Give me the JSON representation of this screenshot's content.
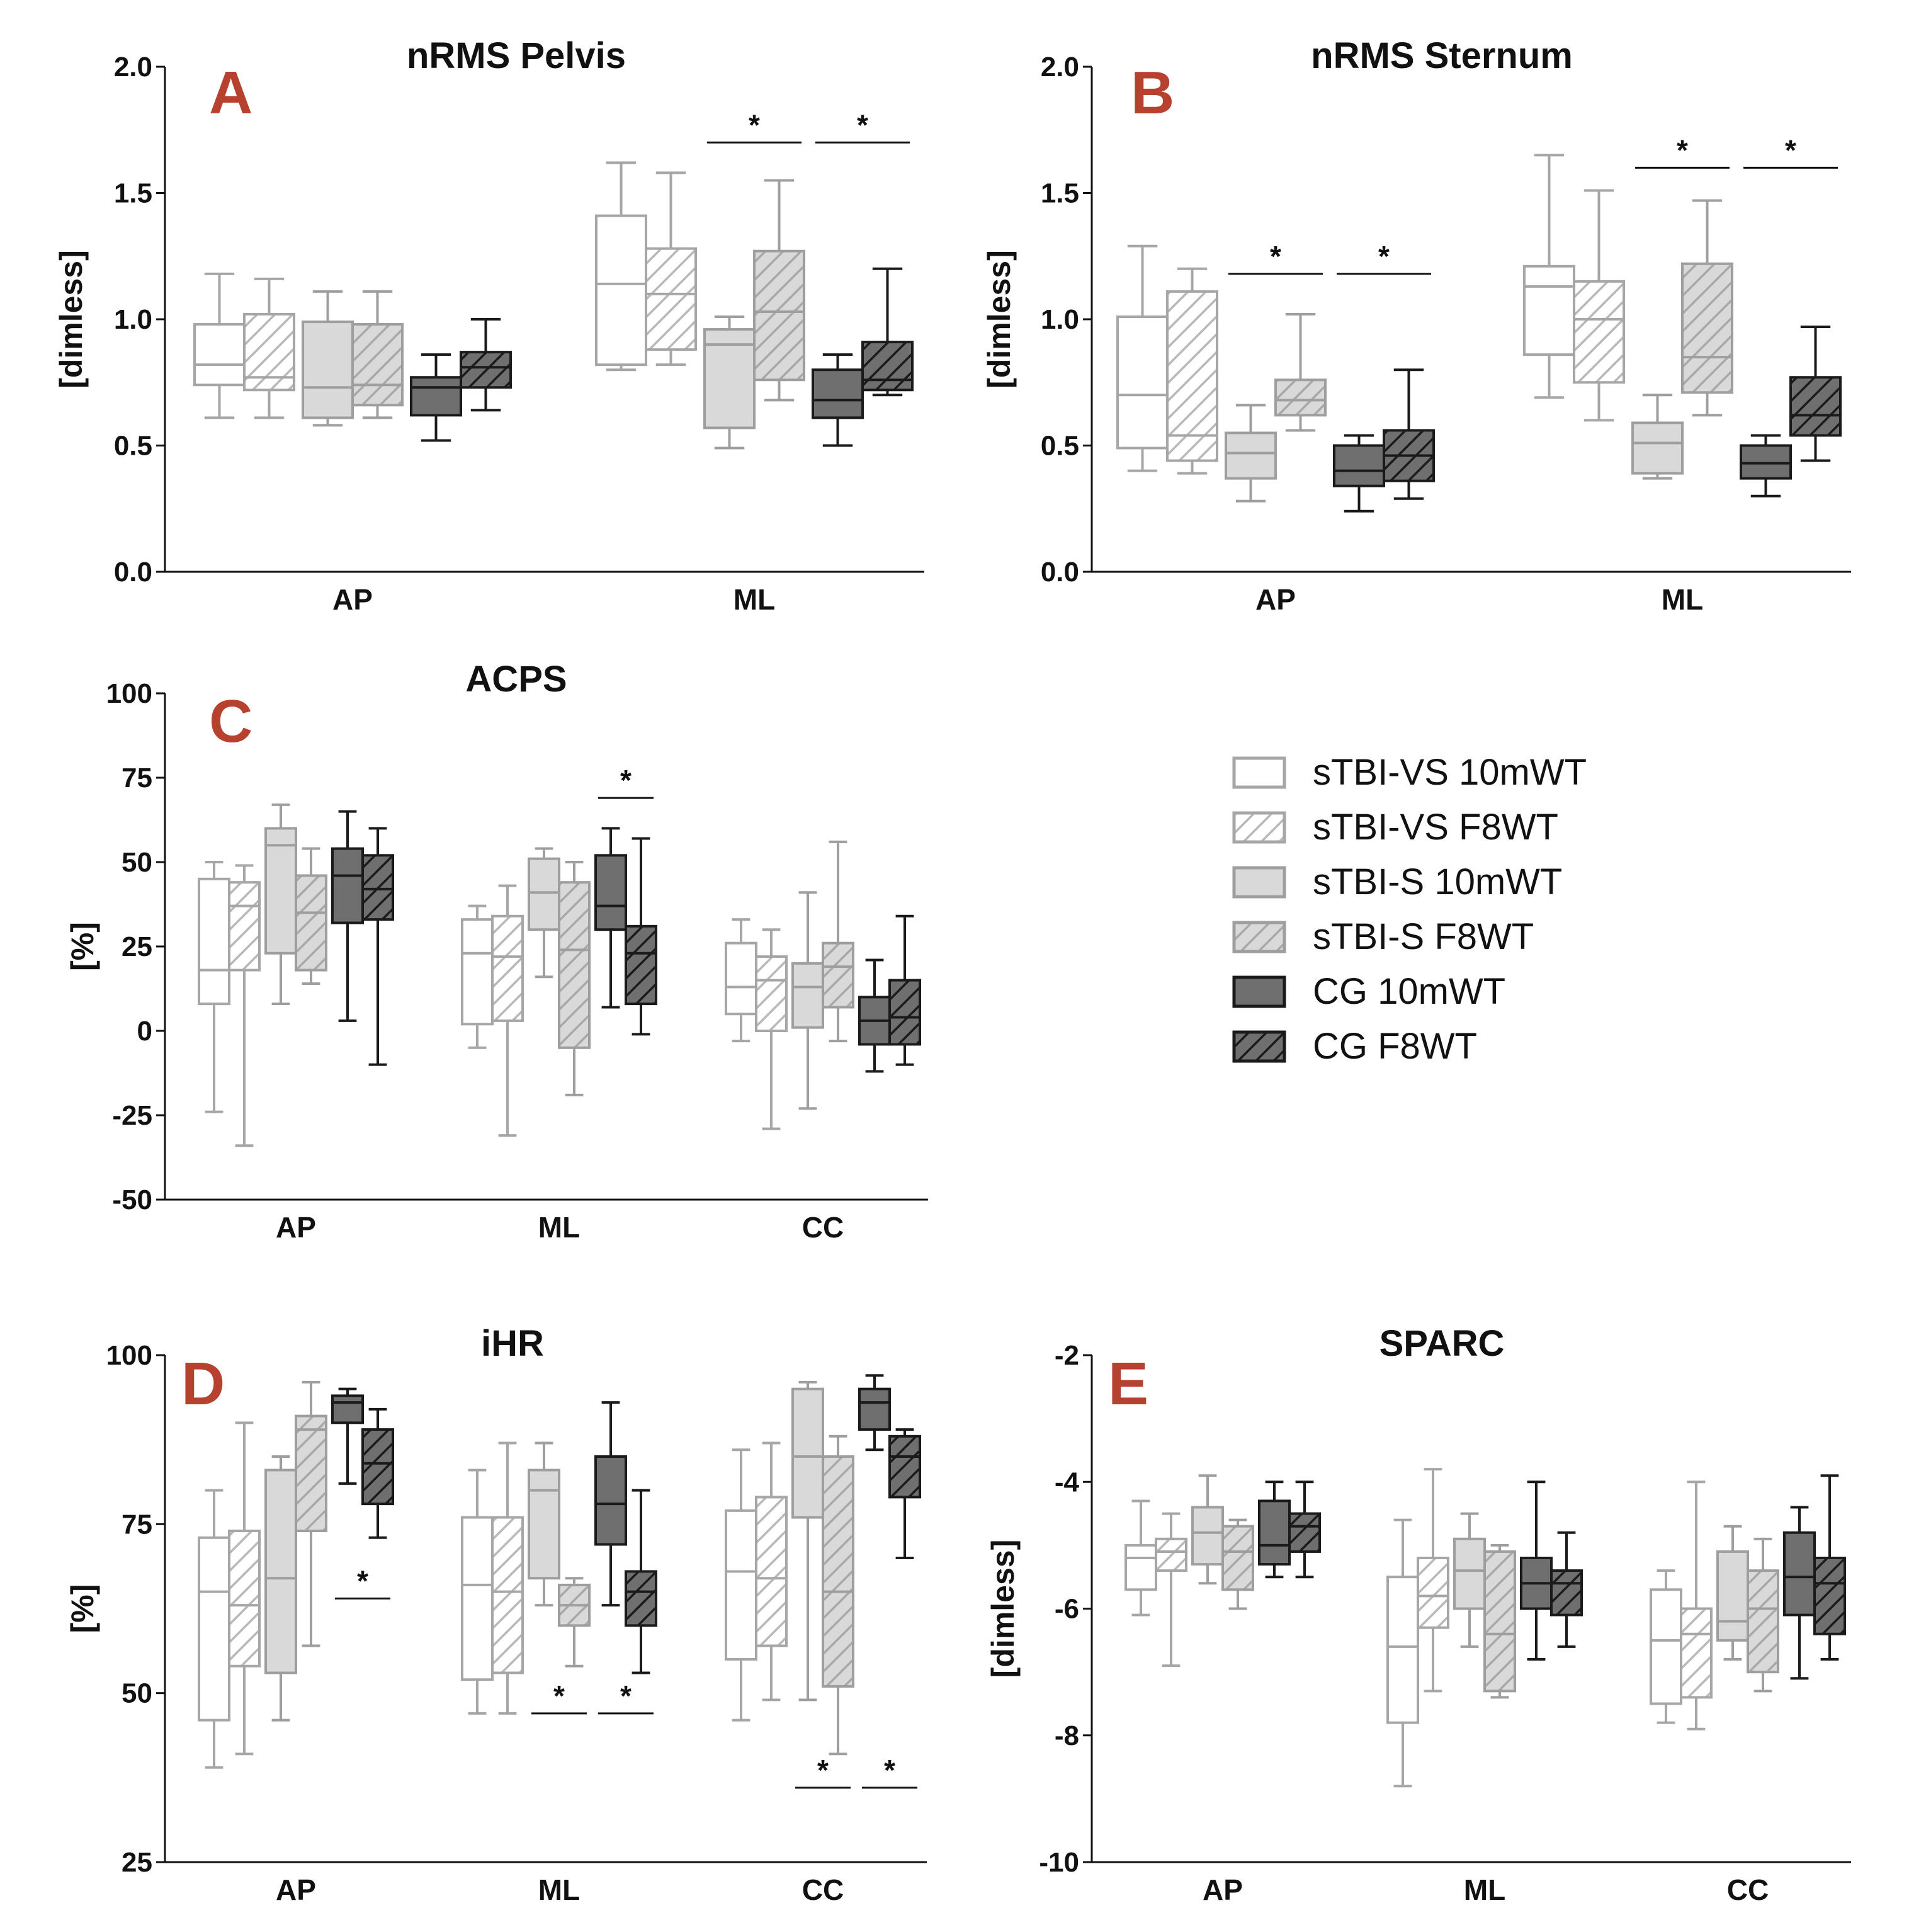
{
  "figure": {
    "background": "#ffffff",
    "panel_label_color": "#b5412e",
    "legend": [
      {
        "label": "sTBI-VS 10mWT",
        "series": 0
      },
      {
        "label": "sTBI-VS F8WT",
        "series": 1
      },
      {
        "label": "sTBI-S 10mWT",
        "series": 2
      },
      {
        "label": "sTBI-S F8WT",
        "series": 3
      },
      {
        "label": "CG 10mWT",
        "series": 4
      },
      {
        "label": "CG F8WT",
        "series": 5
      }
    ],
    "series_styles": [
      {
        "fill": "#ffffff",
        "stroke": "#a6a6a6",
        "hatch": false
      },
      {
        "fill": "#ffffff",
        "stroke": "#a6a6a6",
        "hatch": true,
        "hatch_color": "#b8b8b8"
      },
      {
        "fill": "#d9d9d9",
        "stroke": "#9e9e9e",
        "hatch": false
      },
      {
        "fill": "#d9d9d9",
        "stroke": "#9e9e9e",
        "hatch": true,
        "hatch_color": "#a8a8a8"
      },
      {
        "fill": "#6f6f6f",
        "stroke": "#1a1a1a",
        "hatch": false
      },
      {
        "fill": "#6f6f6f",
        "stroke": "#1a1a1a",
        "hatch": true,
        "hatch_color": "#1a1a1a"
      }
    ]
  },
  "chart_data": [
    {
      "id": "A",
      "label": "A",
      "type": "box",
      "title": "nRMS Pelvis",
      "ylabel": "[dimless]",
      "ylim": [
        0,
        2
      ],
      "yticks": [
        "0.0",
        "0.5",
        "1.0",
        "1.5",
        "2.0"
      ],
      "ytick_values": [
        0,
        0.5,
        1,
        1.5,
        2
      ],
      "categories": [
        "AP",
        "ML"
      ],
      "boxes": [
        [
          [
            0.61,
            0.74,
            0.82,
            0.98,
            1.18
          ],
          [
            0.61,
            0.72,
            0.77,
            1.02,
            1.16
          ],
          [
            0.58,
            0.61,
            0.73,
            0.99,
            1.11
          ],
          [
            0.61,
            0.66,
            0.74,
            0.98,
            1.11
          ],
          [
            0.52,
            0.62,
            0.73,
            0.77,
            0.86
          ],
          [
            0.64,
            0.73,
            0.81,
            0.87,
            1.0
          ]
        ],
        [
          [
            0.8,
            0.82,
            1.14,
            1.41,
            1.62
          ],
          [
            0.82,
            0.88,
            1.1,
            1.28,
            1.58
          ],
          [
            0.49,
            0.57,
            0.9,
            0.96,
            1.01
          ],
          [
            0.68,
            0.76,
            1.03,
            1.27,
            1.55
          ],
          [
            0.5,
            0.61,
            0.68,
            0.8,
            0.86
          ],
          [
            0.7,
            0.72,
            0.76,
            0.91,
            1.2
          ]
        ]
      ],
      "significance": [
        {
          "category": "ML",
          "pair": [
            2,
            3
          ],
          "label": "*",
          "y": 1.7
        },
        {
          "category": "ML",
          "pair": [
            4,
            5
          ],
          "label": "*",
          "y": 1.7
        }
      ]
    },
    {
      "id": "B",
      "label": "B",
      "type": "box",
      "title": "nRMS Sternum",
      "ylabel": "[dimless]",
      "ylim": [
        0,
        2
      ],
      "yticks": [
        "0.0",
        "0.5",
        "1.0",
        "1.5",
        "2.0"
      ],
      "ytick_values": [
        0,
        0.5,
        1,
        1.5,
        2
      ],
      "categories": [
        "AP",
        "ML"
      ],
      "boxes": [
        [
          [
            0.4,
            0.49,
            0.7,
            1.01,
            1.29
          ],
          [
            0.39,
            0.44,
            0.54,
            1.11,
            1.2
          ],
          [
            0.28,
            0.37,
            0.47,
            0.55,
            0.66
          ],
          [
            0.56,
            0.62,
            0.68,
            0.76,
            1.02
          ],
          [
            0.24,
            0.34,
            0.4,
            0.5,
            0.54
          ],
          [
            0.29,
            0.36,
            0.46,
            0.56,
            0.8
          ]
        ],
        [
          [
            0.69,
            0.86,
            1.13,
            1.21,
            1.65
          ],
          [
            0.6,
            0.75,
            1.0,
            1.15,
            1.51
          ],
          [
            0.37,
            0.39,
            0.51,
            0.59,
            0.7
          ],
          [
            0.62,
            0.71,
            0.85,
            1.22,
            1.47
          ],
          [
            0.3,
            0.37,
            0.43,
            0.5,
            0.54
          ],
          [
            0.44,
            0.54,
            0.62,
            0.77,
            0.97
          ]
        ]
      ],
      "significance": [
        {
          "category": "AP",
          "pair": [
            2,
            3
          ],
          "label": "*",
          "y": 1.18
        },
        {
          "category": "AP",
          "pair": [
            4,
            5
          ],
          "label": "*",
          "y": 1.18
        },
        {
          "category": "ML",
          "pair": [
            2,
            3
          ],
          "label": "*",
          "y": 1.6
        },
        {
          "category": "ML",
          "pair": [
            4,
            5
          ],
          "label": "*",
          "y": 1.6
        }
      ]
    },
    {
      "id": "C",
      "label": "C",
      "type": "box",
      "title": "ACPS",
      "ylabel": "[%]",
      "ylim": [
        -50,
        100
      ],
      "yticks": [
        "-50",
        "-25",
        "0",
        "25",
        "50",
        "75",
        "100"
      ],
      "ytick_values": [
        -50,
        -25,
        0,
        25,
        50,
        75,
        100
      ],
      "categories": [
        "AP",
        "ML",
        "CC"
      ],
      "boxes": [
        [
          [
            -24,
            8,
            18,
            45,
            50
          ],
          [
            -34,
            18,
            37,
            44,
            49
          ],
          [
            8,
            23,
            55,
            60,
            67
          ],
          [
            14,
            18,
            35,
            46,
            54
          ],
          [
            3,
            32,
            46,
            54,
            65
          ],
          [
            -10,
            33,
            42,
            52,
            60
          ]
        ],
        [
          [
            -5,
            2,
            23,
            33,
            37
          ],
          [
            -31,
            3,
            22,
            34,
            43
          ],
          [
            16,
            30,
            41,
            51,
            54
          ],
          [
            -19,
            -5,
            24,
            44,
            50
          ],
          [
            7,
            30,
            37,
            52,
            60
          ],
          [
            -1,
            8,
            23,
            31,
            57
          ]
        ],
        [
          [
            -3,
            5,
            13,
            26,
            33
          ],
          [
            -29,
            0,
            15,
            22,
            30
          ],
          [
            -23,
            1,
            13,
            20,
            41
          ],
          [
            -3,
            7,
            19,
            26,
            56
          ],
          [
            -12,
            -4,
            3,
            10,
            21
          ],
          [
            -10,
            -4,
            4,
            15,
            34
          ]
        ]
      ],
      "significance": [
        {
          "category": "ML",
          "pair": [
            4,
            5
          ],
          "label": "*",
          "y": 69
        }
      ]
    },
    {
      "id": "D",
      "label": "D",
      "type": "box",
      "title": "iHR",
      "ylabel": "[%]",
      "ylim": [
        25,
        100
      ],
      "yticks": [
        "25",
        "50",
        "75",
        "100"
      ],
      "ytick_values": [
        25,
        50,
        75,
        100
      ],
      "categories": [
        "AP",
        "ML",
        "CC"
      ],
      "boxes": [
        [
          [
            39,
            46,
            65,
            73,
            80
          ],
          [
            41,
            54,
            63,
            74,
            90
          ],
          [
            46,
            53,
            67,
            83,
            85
          ],
          [
            57,
            74,
            89,
            91,
            96
          ],
          [
            81,
            90,
            93,
            94,
            95
          ],
          [
            73,
            78,
            84,
            89,
            92
          ]
        ],
        [
          [
            47,
            52,
            66,
            76,
            83
          ],
          [
            47,
            53,
            65,
            76,
            87
          ],
          [
            63,
            67,
            80,
            83,
            87
          ],
          [
            54,
            60,
            63,
            66,
            67
          ],
          [
            63,
            72,
            78,
            85,
            93
          ],
          [
            53,
            60,
            65,
            68,
            80
          ]
        ],
        [
          [
            46,
            55,
            68,
            77,
            86
          ],
          [
            49,
            57,
            67,
            79,
            87
          ],
          [
            49,
            76,
            85,
            95,
            96
          ],
          [
            41,
            51,
            65,
            85,
            88
          ],
          [
            86,
            89,
            93,
            95,
            97
          ],
          [
            70,
            79,
            85,
            88,
            89
          ]
        ]
      ],
      "significance": [
        {
          "category": "AP",
          "pair": [
            4,
            5
          ],
          "label": "*",
          "y": 64,
          "below": true
        },
        {
          "category": "ML",
          "pair": [
            2,
            3
          ],
          "label": "*",
          "y": 47,
          "below": true
        },
        {
          "category": "ML",
          "pair": [
            4,
            5
          ],
          "label": "*",
          "y": 47,
          "below": true
        },
        {
          "category": "CC",
          "pair": [
            2,
            3
          ],
          "label": "*",
          "y": 36,
          "below": true
        },
        {
          "category": "CC",
          "pair": [
            4,
            5
          ],
          "label": "*",
          "y": 36,
          "below": true
        }
      ]
    },
    {
      "id": "E",
      "label": "E",
      "type": "box",
      "title": "SPARC",
      "ylabel": "[dimless]",
      "ylim": [
        -10,
        -2
      ],
      "yticks": [
        "-10",
        "-8",
        "-6",
        "-4",
        "-2"
      ],
      "ytick_values": [
        -10,
        -8,
        -6,
        -4,
        -2
      ],
      "categories": [
        "AP",
        "ML",
        "CC"
      ],
      "boxes": [
        [
          [
            -6.1,
            -5.7,
            -5.2,
            -5.0,
            -4.3
          ],
          [
            -6.9,
            -5.4,
            -5.1,
            -4.9,
            -4.5
          ],
          [
            -5.6,
            -5.3,
            -4.8,
            -4.4,
            -3.9
          ],
          [
            -6.0,
            -5.7,
            -5.1,
            -4.7,
            -4.6
          ],
          [
            -5.5,
            -5.3,
            -5.0,
            -4.3,
            -4.0
          ],
          [
            -5.5,
            -5.1,
            -4.7,
            -4.5,
            -4.0
          ]
        ],
        [
          [
            -8.8,
            -7.8,
            -6.6,
            -5.5,
            -4.6
          ],
          [
            -7.3,
            -6.3,
            -5.8,
            -5.2,
            -3.8
          ],
          [
            -6.6,
            -6.0,
            -5.4,
            -4.9,
            -4.5
          ],
          [
            -7.4,
            -7.3,
            -6.4,
            -5.1,
            -5.0
          ],
          [
            -6.8,
            -6.0,
            -5.6,
            -5.2,
            -4.0
          ],
          [
            -6.6,
            -6.1,
            -5.6,
            -5.4,
            -4.8
          ]
        ],
        [
          [
            -7.8,
            -7.5,
            -6.5,
            -5.7,
            -5.4
          ],
          [
            -7.9,
            -7.4,
            -6.4,
            -6.0,
            -4.0
          ],
          [
            -6.8,
            -6.5,
            -6.2,
            -5.1,
            -4.7
          ],
          [
            -7.3,
            -7.0,
            -6.0,
            -5.4,
            -4.9
          ],
          [
            -7.1,
            -6.1,
            -5.5,
            -4.8,
            -4.4
          ],
          [
            -6.8,
            -6.4,
            -5.6,
            -5.2,
            -3.9
          ]
        ]
      ],
      "significance": []
    }
  ]
}
